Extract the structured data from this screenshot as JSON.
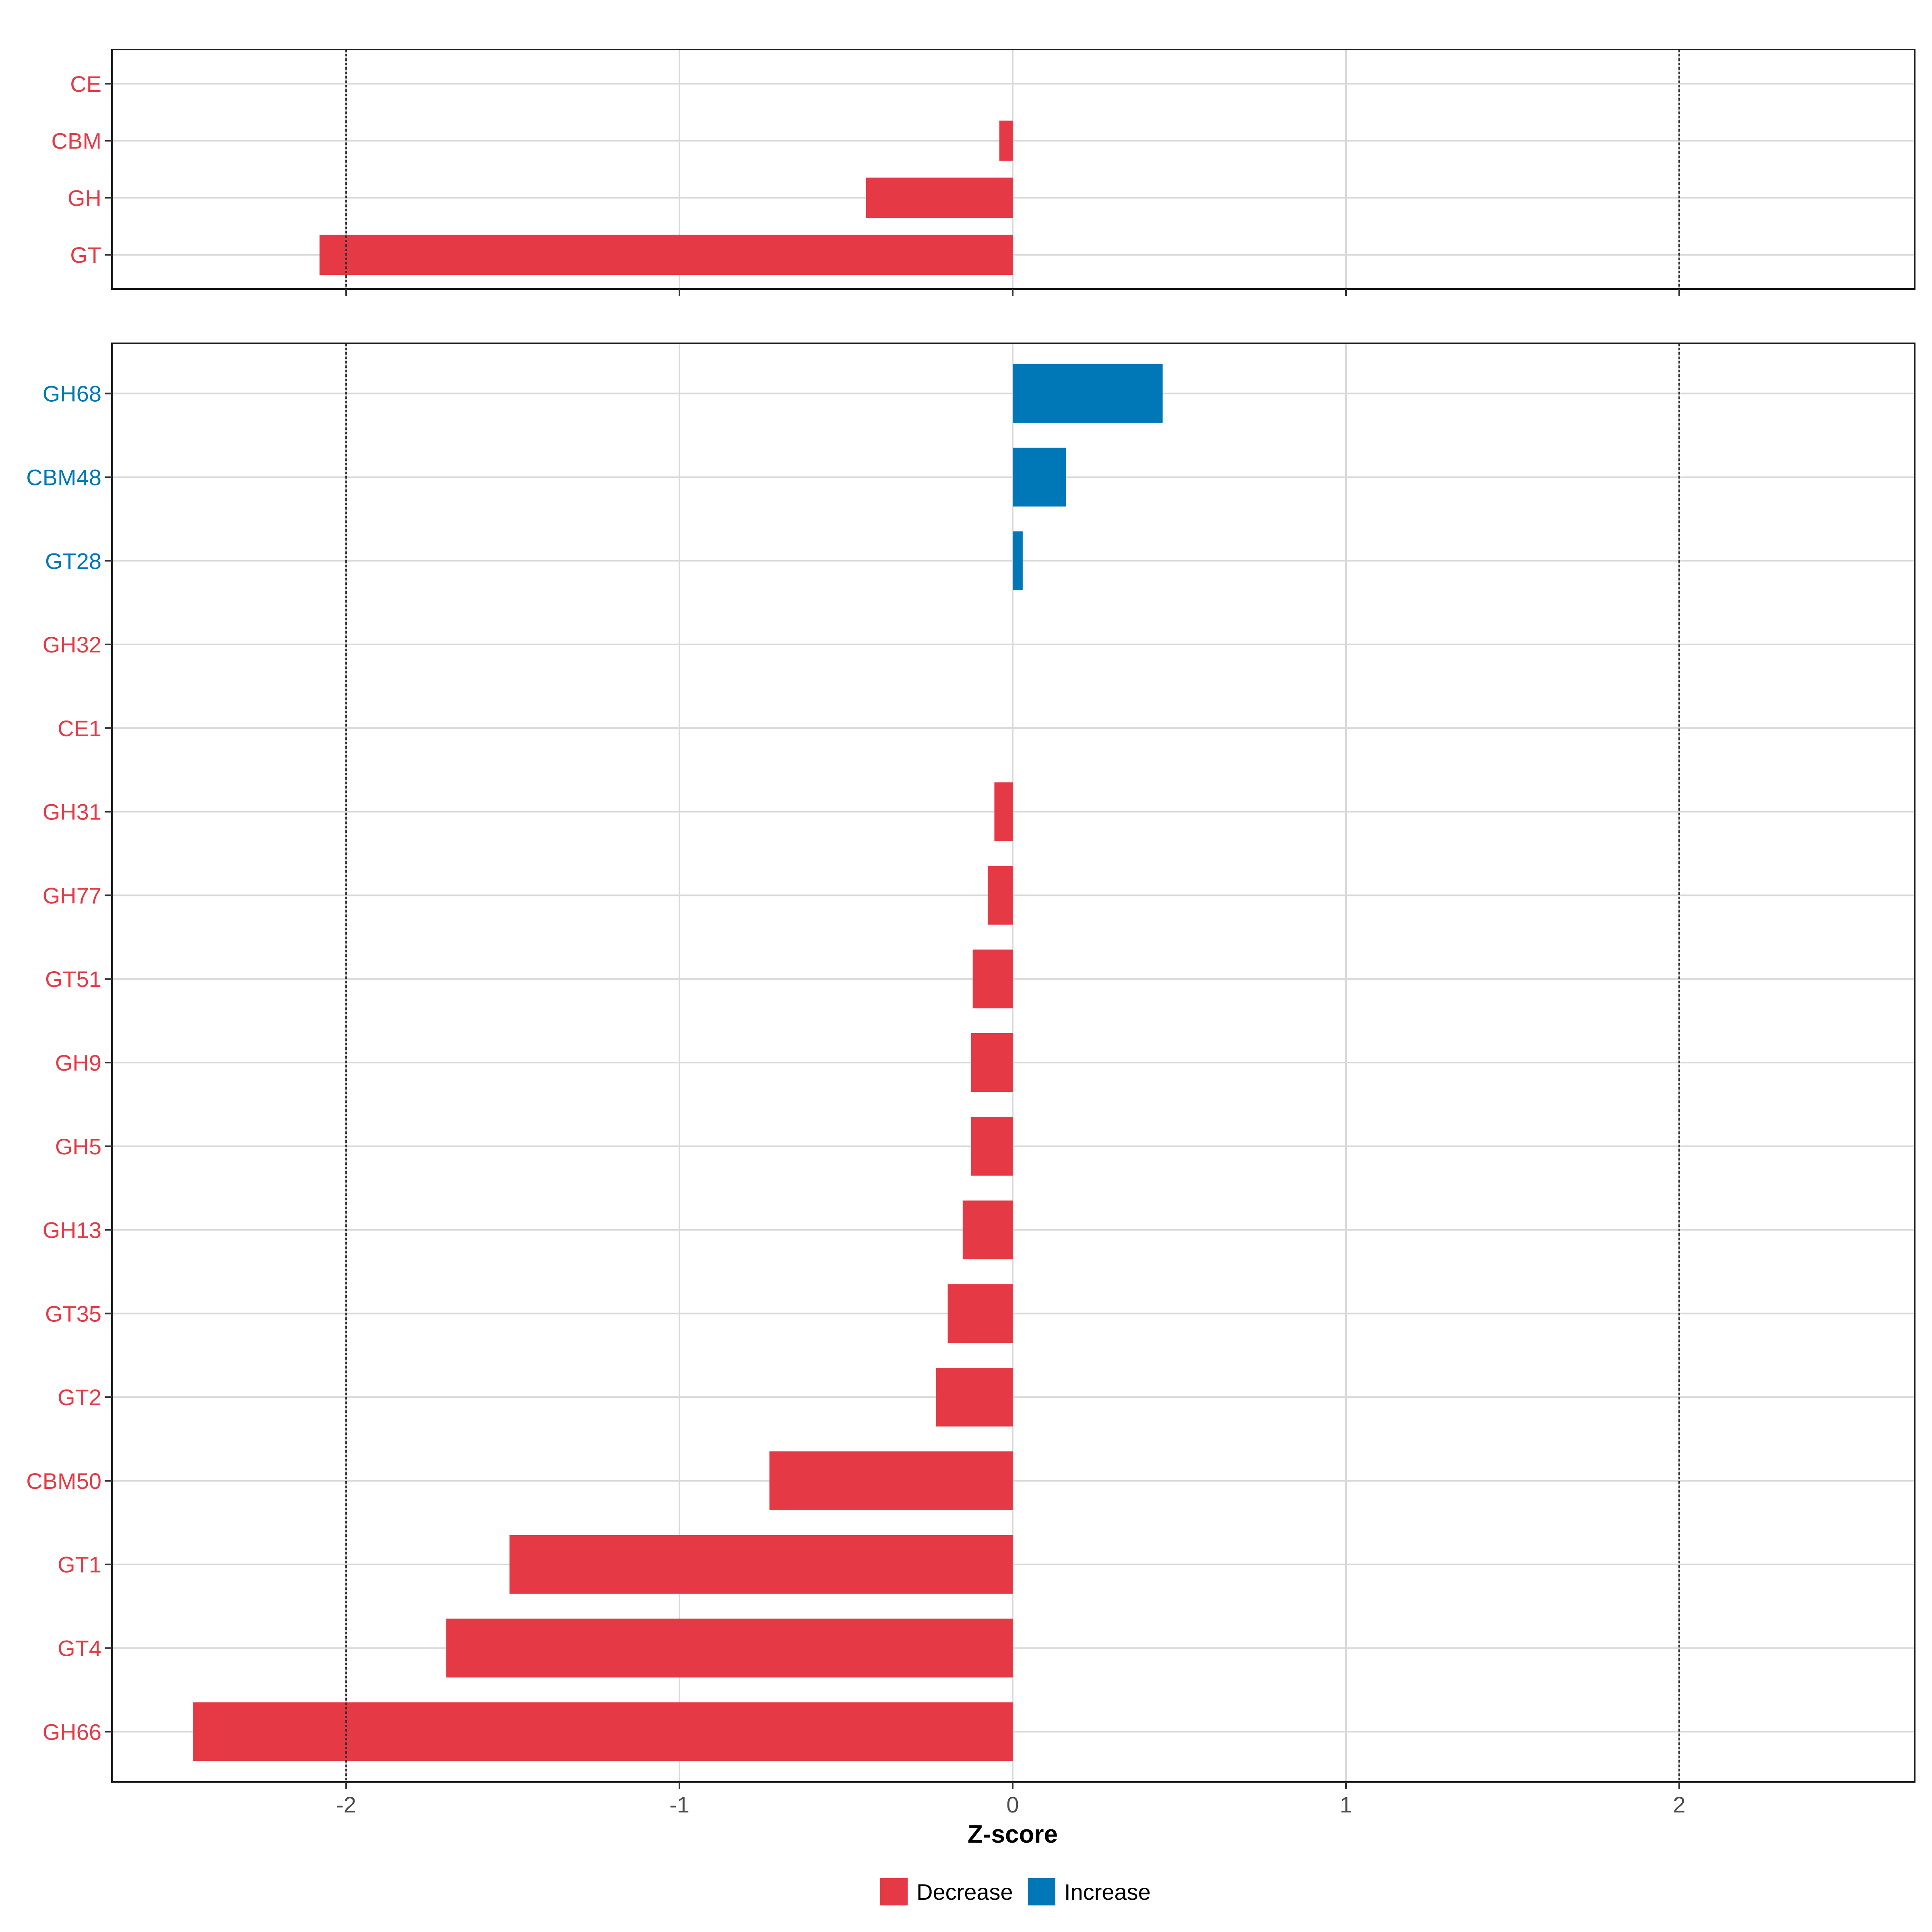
{
  "colors": {
    "decrease": "#E63946",
    "increase": "#0077B6",
    "grid": "#D9D9D9",
    "panel_border": "#1A1A1A",
    "threshold_line": "#333333",
    "tick_text": "#4D4D4D",
    "title_text": "#000000"
  },
  "chart_data": [
    {
      "type": "bar",
      "orientation": "horizontal",
      "panel": "top",
      "categories": [
        "CE",
        "CBM",
        "GH",
        "GT"
      ],
      "values": [
        0.0,
        -0.04,
        -0.44,
        -2.08
      ],
      "direction": [
        "Decrease",
        "Decrease",
        "Decrease",
        "Decrease"
      ],
      "xlim": [
        -2.7,
        2.7
      ],
      "reference_lines": [
        -2,
        2
      ],
      "grid": true
    },
    {
      "type": "bar",
      "orientation": "horizontal",
      "panel": "bottom",
      "categories": [
        "GH68",
        "CBM48",
        "GT28",
        "GH32",
        "CE1",
        "GH31",
        "GH77",
        "GT51",
        "GH9",
        "GH5",
        "GH13",
        "GT35",
        "GT2",
        "CBM50",
        "GT1",
        "GT4",
        "GH66"
      ],
      "values": [
        0.45,
        0.16,
        0.03,
        0.0,
        0.0,
        -0.055,
        -0.075,
        -0.12,
        -0.125,
        -0.125,
        -0.15,
        -0.195,
        -0.23,
        -0.73,
        -1.51,
        -1.7,
        -2.46
      ],
      "direction": [
        "Increase",
        "Increase",
        "Increase",
        "Decrease",
        "Decrease",
        "Decrease",
        "Decrease",
        "Decrease",
        "Decrease",
        "Decrease",
        "Decrease",
        "Decrease",
        "Decrease",
        "Decrease",
        "Decrease",
        "Decrease",
        "Decrease"
      ],
      "xlim": [
        -2.7,
        2.7
      ],
      "x_ticks": [
        -2,
        -1,
        0,
        1,
        2
      ],
      "x_tick_labels": [
        "-2",
        "-1",
        "0",
        "1",
        "2"
      ],
      "xlabel": "Z-score",
      "reference_lines": [
        -2,
        2
      ],
      "grid": true
    }
  ],
  "legend": {
    "placement": "bottom",
    "items": [
      {
        "label": "Decrease",
        "key": "decrease"
      },
      {
        "label": "Increase",
        "key": "increase"
      }
    ]
  }
}
